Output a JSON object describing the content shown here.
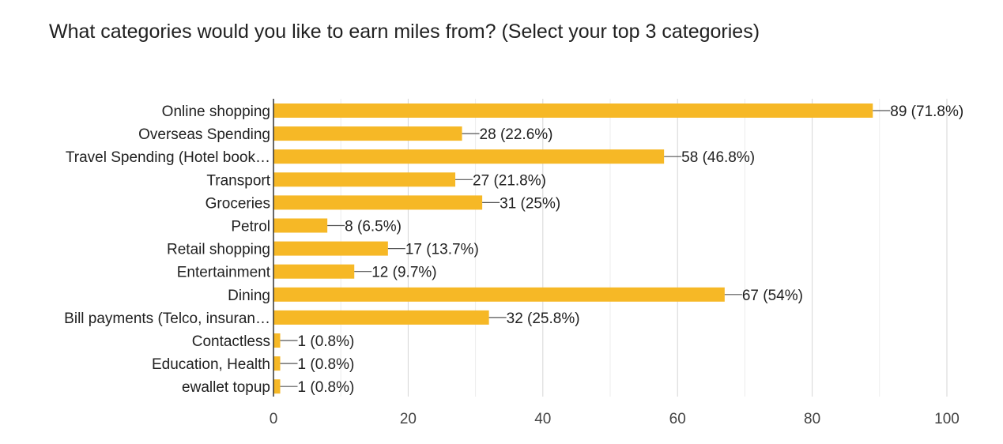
{
  "title": "What categories would you like to earn miles from? (Select your top 3 categories)",
  "chart_data": {
    "type": "bar",
    "orientation": "horizontal",
    "title": "What categories would you like to earn miles from? (Select your top 3 categories)",
    "categories": [
      "Online shopping",
      "Overseas Spending",
      "Travel Spending (Hotel book…",
      "Transport",
      "Groceries",
      "Petrol",
      "Retail shopping",
      "Entertainment",
      "Dining",
      "Bill payments (Telco, insuran…",
      "Contactless",
      "Education, Health",
      "ewallet topup"
    ],
    "values": [
      89,
      28,
      58,
      27,
      31,
      8,
      17,
      12,
      67,
      32,
      1,
      1,
      1
    ],
    "data_labels": [
      "89 (71.8%)",
      "28 (22.6%)",
      "58 (46.8%)",
      "27 (21.8%)",
      "31 (25%)",
      "8 (6.5%)",
      "17 (13.7%)",
      "12 (9.7%)",
      "67 (54%)",
      "32 (25.8%)",
      "1 (0.8%)",
      "1 (0.8%)",
      "1 (0.8%)"
    ],
    "xlim": [
      0,
      100
    ],
    "xticks": [
      0,
      20,
      40,
      60,
      80,
      100
    ],
    "grid": true,
    "bar_color": "#F6B826"
  }
}
